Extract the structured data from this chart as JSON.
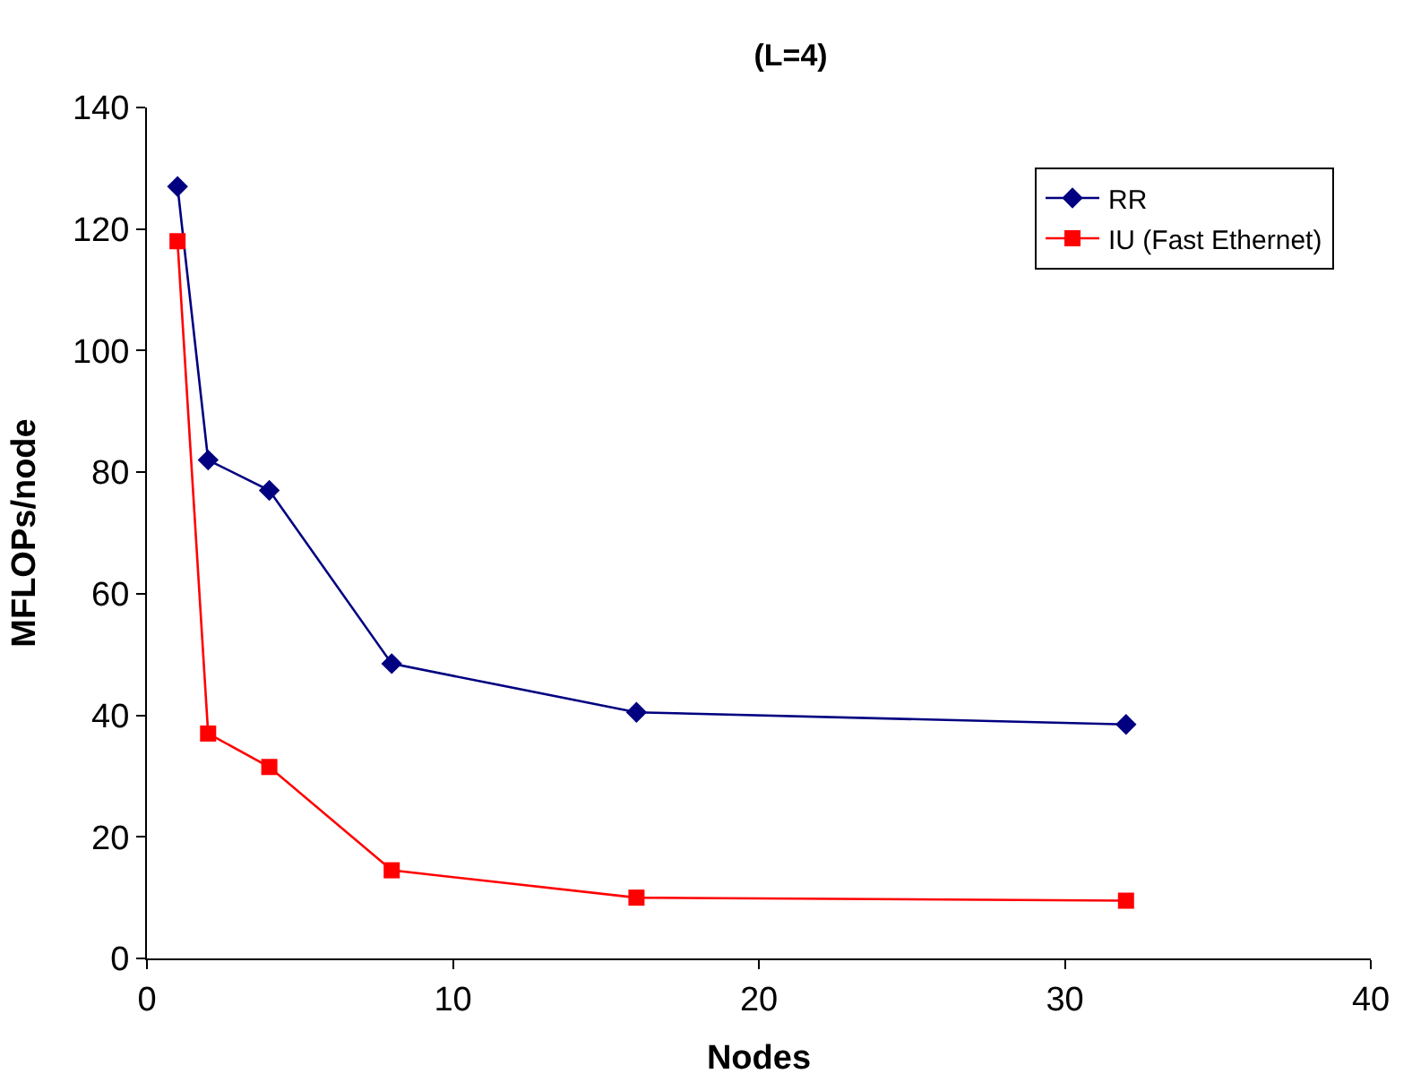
{
  "chart_data": {
    "type": "line",
    "title": "(L=4)",
    "xlabel": "Nodes",
    "ylabel": "MFLOPs/node",
    "x": [
      1,
      2,
      4,
      8,
      16,
      32
    ],
    "series": [
      {
        "name": "RR",
        "color": "#000080",
        "marker": "diamond",
        "values": [
          127,
          82,
          77,
          48.5,
          40.5,
          38.5
        ]
      },
      {
        "name": "IU (Fast Ethernet)",
        "color": "#ff0000",
        "marker": "square",
        "values": [
          118,
          37,
          31.5,
          14.5,
          10,
          9.5
        ]
      }
    ],
    "xlim": [
      0,
      40
    ],
    "xticks": [
      0,
      10,
      20,
      30,
      40
    ],
    "ylim": [
      0,
      140
    ],
    "yticks": [
      0,
      20,
      40,
      60,
      80,
      100,
      120,
      140
    ],
    "grid": false,
    "legend": "top right",
    "line_style": "solid"
  }
}
